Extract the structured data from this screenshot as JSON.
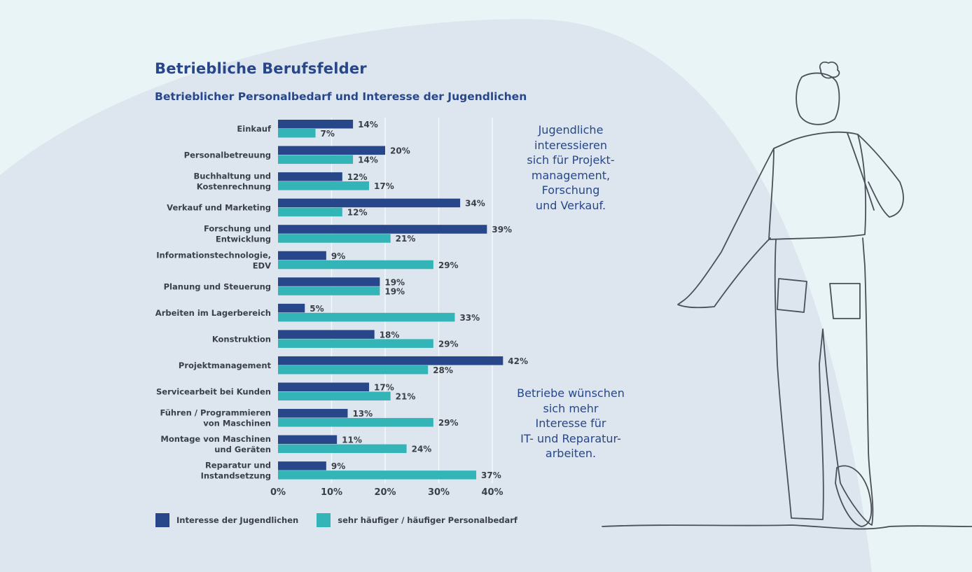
{
  "colors": {
    "page_background": "#e9f4f6",
    "arc_background": "#dde6ee",
    "heading": "#27478a",
    "text": "#3b3f48",
    "interest": "#27478a",
    "demand": "#33b5b8",
    "gridline": "#f3f7fa",
    "illustration_line": "#4a5058"
  },
  "title": "Betriebliche Berufsfelder",
  "subtitle": "Betrieblicher Personalbedarf und Interesse der Jugendlichen",
  "notes": [
    "Jugendliche\ninteressieren\nsich für Projekt-\nmanagement,\nForschung\nund Verkauf.",
    "Betriebe wünschen\nsich mehr\nInteresse für\nIT- und Reparatur-\narbeiten."
  ],
  "illustration": {
    "icon": "line-drawing-person-walking-icon"
  },
  "chart_data": {
    "type": "bar",
    "orientation": "horizontal",
    "title": "Betriebliche Berufsfelder",
    "subtitle": "Betrieblicher Personalbedarf und Interesse der Jugendlichen",
    "xlabel": "",
    "ylabel": "",
    "xlim": [
      0,
      40
    ],
    "x_ticks": [
      "0%",
      "10%",
      "20%",
      "30%",
      "40%"
    ],
    "x_tick_values": [
      0,
      10,
      20,
      30,
      40
    ],
    "grid": true,
    "legend_position": "bottom-left",
    "categories": [
      [
        "Einkauf"
      ],
      [
        "Personalbetreuung"
      ],
      [
        "Buchhaltung und",
        "Kostenrechnung"
      ],
      [
        "Verkauf und Marketing"
      ],
      [
        "Forschung und",
        "Entwicklung"
      ],
      [
        "Informationstechnologie,",
        "EDV"
      ],
      [
        "Planung und Steuerung"
      ],
      [
        "Arbeiten im Lagerbereich"
      ],
      [
        "Konstruktion"
      ],
      [
        "Projektmanagement"
      ],
      [
        "Servicearbeit bei Kunden"
      ],
      [
        "Führen / Programmieren",
        "von Maschinen"
      ],
      [
        "Montage von Maschinen",
        "und Geräten"
      ],
      [
        "Reparatur und",
        "Instandsetzung"
      ]
    ],
    "series": [
      {
        "name": "Interesse der Jugendlichen",
        "color": "#27478a",
        "values": [
          14,
          20,
          12,
          34,
          39,
          9,
          19,
          5,
          18,
          42,
          17,
          13,
          11,
          9
        ],
        "labels": [
          "14%",
          "20%",
          "12%",
          "34%",
          "39%",
          "9%",
          "19%",
          "5%",
          "18%",
          "42%",
          "17%",
          "13%",
          "11%",
          "9%"
        ]
      },
      {
        "name": "sehr häufiger / häufiger Personalbedarf",
        "color": "#33b5b8",
        "values": [
          7,
          14,
          17,
          12,
          21,
          29,
          19,
          33,
          29,
          28,
          21,
          29,
          24,
          37
        ],
        "labels": [
          "7%",
          "14%",
          "17%",
          "12%",
          "21%",
          "29%",
          "19%",
          "33%",
          "29%",
          "28%",
          "21%",
          "29%",
          "24%",
          "37%"
        ]
      }
    ]
  },
  "legend": [
    {
      "label": "Interesse der Jugendlichen",
      "color": "#27478a"
    },
    {
      "label": "sehr häufiger / häufiger Personalbedarf",
      "color": "#33b5b8"
    }
  ]
}
